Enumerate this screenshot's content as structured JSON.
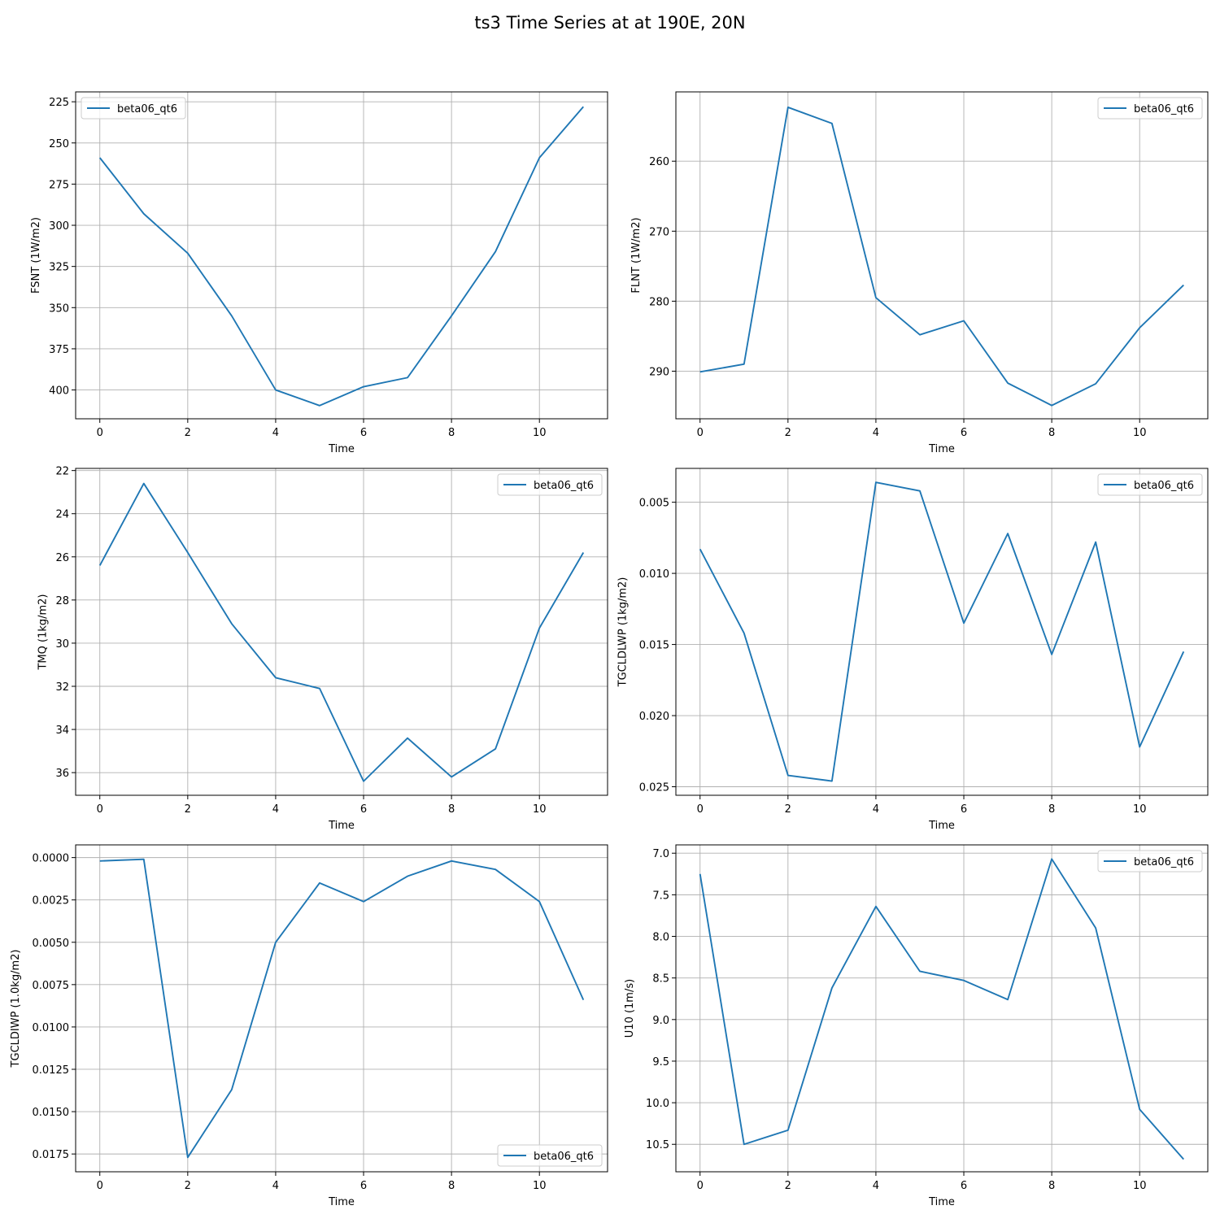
{
  "figure": {
    "title": "ts3 Time Series at at 190E, 20N"
  },
  "style": {
    "line_color": "#1f77b4",
    "grid_color": "#b0b0b0"
  },
  "chart_data": [
    {
      "type": "line",
      "xlabel": "Time",
      "ylabel": "FSNT (1W/m2)",
      "y_inverted": true,
      "grid": true,
      "legend_position": "top-left",
      "x": [
        0,
        1,
        2,
        3,
        4,
        5,
        6,
        7,
        8,
        9,
        10,
        11
      ],
      "x_ticks": [
        0,
        2,
        4,
        6,
        8,
        10
      ],
      "x_tick_labels": [
        "0",
        "2",
        "4",
        "6",
        "8",
        "10"
      ],
      "xlim": [
        -0.55,
        11.55
      ],
      "ylim": [
        219,
        417.5
      ],
      "y_ticks": [
        225,
        250,
        275,
        300,
        325,
        350,
        375,
        400
      ],
      "y_tick_labels": [
        "225",
        "250",
        "275",
        "300",
        "325",
        "350",
        "375",
        "400"
      ],
      "series": [
        {
          "name": "beta06_qt6",
          "values": [
            259,
            293,
            317,
            355,
            400,
            409.5,
            398,
            392.5,
            355,
            316,
            259,
            228
          ]
        }
      ]
    },
    {
      "type": "line",
      "xlabel": "Time",
      "ylabel": "FLNT (1W/m2)",
      "y_inverted": true,
      "grid": true,
      "legend_position": "top-right",
      "x": [
        0,
        1,
        2,
        3,
        4,
        5,
        6,
        7,
        8,
        9,
        10,
        11
      ],
      "x_ticks": [
        0,
        2,
        4,
        6,
        8,
        10
      ],
      "x_tick_labels": [
        "0",
        "2",
        "4",
        "6",
        "8",
        "10"
      ],
      "xlim": [
        -0.55,
        11.55
      ],
      "ylim": [
        250.1,
        296.8
      ],
      "y_ticks": [
        260,
        270,
        280,
        290
      ],
      "y_tick_labels": [
        "260",
        "270",
        "280",
        "290"
      ],
      "series": [
        {
          "name": "beta06_qt6",
          "values": [
            290.1,
            289,
            252.3,
            254.6,
            279.5,
            284.8,
            282.8,
            291.7,
            294.9,
            291.8,
            283.8,
            277.7
          ]
        }
      ]
    },
    {
      "type": "line",
      "xlabel": "Time",
      "ylabel": "TMQ (1kg/m2)",
      "y_inverted": true,
      "grid": true,
      "legend_position": "top-right",
      "x": [
        0,
        1,
        2,
        3,
        4,
        5,
        6,
        7,
        8,
        9,
        10,
        11
      ],
      "x_ticks": [
        0,
        2,
        4,
        6,
        8,
        10
      ],
      "x_tick_labels": [
        "0",
        "2",
        "4",
        "6",
        "8",
        "10"
      ],
      "xlim": [
        -0.55,
        11.55
      ],
      "ylim": [
        21.9,
        37.05
      ],
      "y_ticks": [
        22,
        24,
        26,
        28,
        30,
        32,
        34,
        36
      ],
      "y_tick_labels": [
        "22",
        "24",
        "26",
        "28",
        "30",
        "32",
        "34",
        "36"
      ],
      "series": [
        {
          "name": "beta06_qt6",
          "values": [
            26.4,
            22.6,
            25.8,
            29.1,
            31.6,
            32.1,
            36.4,
            34.4,
            36.2,
            34.9,
            29.3,
            25.8
          ]
        }
      ]
    },
    {
      "type": "line",
      "xlabel": "Time",
      "ylabel": "TGCLDLWP (1kg/m2)",
      "y_inverted": true,
      "grid": true,
      "legend_position": "top-right",
      "x": [
        0,
        1,
        2,
        3,
        4,
        5,
        6,
        7,
        8,
        9,
        10,
        11
      ],
      "x_ticks": [
        0,
        2,
        4,
        6,
        8,
        10
      ],
      "x_tick_labels": [
        "0",
        "2",
        "4",
        "6",
        "8",
        "10"
      ],
      "xlim": [
        -0.55,
        11.55
      ],
      "ylim": [
        0.00262,
        0.0256
      ],
      "y_ticks": [
        0.005,
        0.01,
        0.015,
        0.02,
        0.025
      ],
      "y_tick_labels": [
        "0.005",
        "0.010",
        "0.015",
        "0.020",
        "0.025"
      ],
      "series": [
        {
          "name": "beta06_qt6",
          "values": [
            0.0083,
            0.0142,
            0.0242,
            0.0246,
            0.0036,
            0.0042,
            0.0135,
            0.0072,
            0.0157,
            0.0078,
            0.0222,
            0.0155
          ]
        }
      ]
    },
    {
      "type": "line",
      "xlabel": "Time",
      "ylabel": "TGCLDIWP (1.0kg/m2)",
      "y_inverted": true,
      "grid": true,
      "legend_position": "bottom-right",
      "x": [
        0,
        1,
        2,
        3,
        4,
        5,
        6,
        7,
        8,
        9,
        10,
        11
      ],
      "x_ticks": [
        0,
        2,
        4,
        6,
        8,
        10
      ],
      "x_tick_labels": [
        "0",
        "2",
        "4",
        "6",
        "8",
        "10"
      ],
      "xlim": [
        -0.55,
        11.55
      ],
      "ylim": [
        -0.00075,
        0.01855
      ],
      "y_ticks": [
        0.0,
        0.0025,
        0.005,
        0.0075,
        0.01,
        0.0125,
        0.015,
        0.0175
      ],
      "y_tick_labels": [
        "0.0000",
        "0.0025",
        "0.0050",
        "0.0075",
        "0.0100",
        "0.0125",
        "0.0150",
        "0.0175"
      ],
      "series": [
        {
          "name": "beta06_qt6",
          "values": [
            0.0002,
            0.0001,
            0.0177,
            0.0137,
            0.005,
            0.0015,
            0.0026,
            0.0011,
            0.0002,
            0.0007,
            0.0026,
            0.0084
          ]
        }
      ]
    },
    {
      "type": "line",
      "xlabel": "Time",
      "ylabel": "U10 (1m/s)",
      "y_inverted": true,
      "grid": true,
      "legend_position": "top-right",
      "x": [
        0,
        1,
        2,
        3,
        4,
        5,
        6,
        7,
        8,
        9,
        10,
        11
      ],
      "x_ticks": [
        0,
        2,
        4,
        6,
        8,
        10
      ],
      "x_tick_labels": [
        "0",
        "2",
        "4",
        "6",
        "8",
        "10"
      ],
      "xlim": [
        -0.55,
        11.55
      ],
      "ylim": [
        6.9,
        10.83
      ],
      "y_ticks": [
        7.0,
        7.5,
        8.0,
        8.5,
        9.0,
        9.5,
        10.0,
        10.5
      ],
      "y_tick_labels": [
        "7.0",
        "7.5",
        "8.0",
        "8.5",
        "9.0",
        "9.5",
        "10.0",
        "10.5"
      ],
      "series": [
        {
          "name": "beta06_qt6",
          "values": [
            7.25,
            10.5,
            10.33,
            8.62,
            7.64,
            8.42,
            8.53,
            8.76,
            7.07,
            7.9,
            10.08,
            10.68
          ]
        }
      ]
    }
  ]
}
